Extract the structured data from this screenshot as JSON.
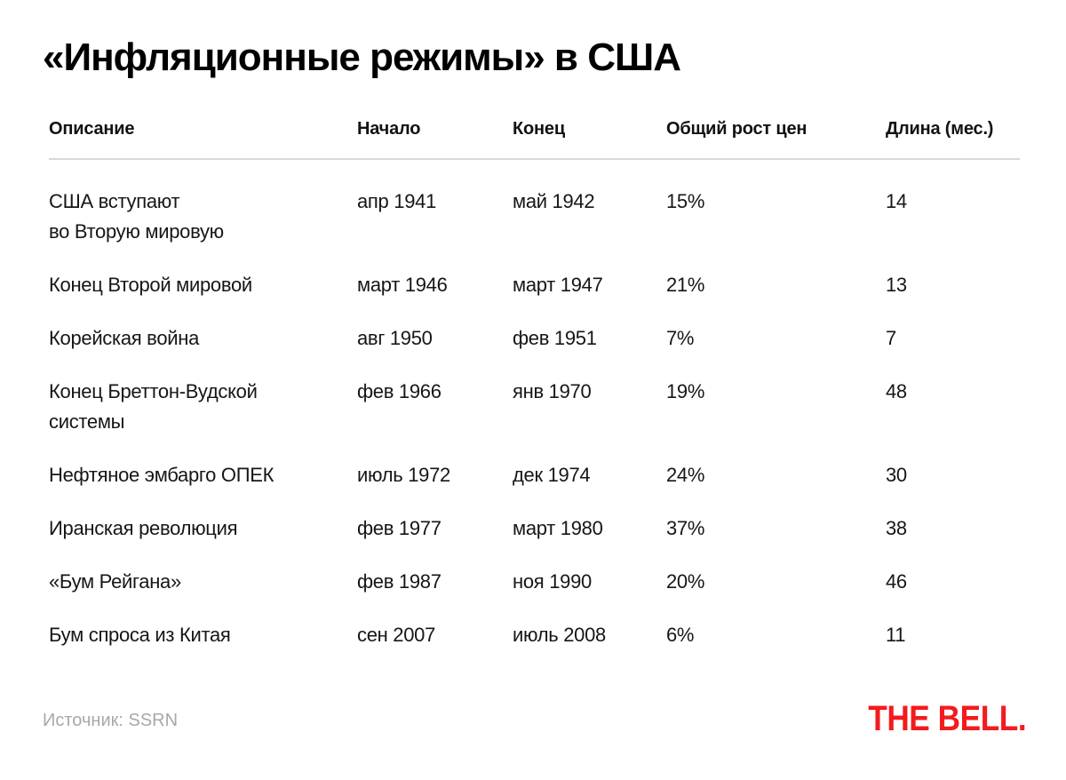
{
  "page": {
    "title": "«Инфляционные режимы» в США",
    "source_note": "Источник: SSRN",
    "logo_text": "THE BELL.",
    "colors": {
      "background": "#FFFFFF",
      "text": "#161616",
      "title": "#000000",
      "muted_gray": "#A8A8A8",
      "rule_gray": "#D8D8D8",
      "brand_red": "#F31B1E"
    }
  },
  "table": {
    "columns": [
      "Описание",
      "Начало",
      "Конец",
      "Общий рост цен",
      "Длина (мес.)"
    ],
    "rows": [
      {
        "description": "США вступают\nво Вторую мировую",
        "start": "апр 1941",
        "end": "май 1942",
        "growth": "15%",
        "length": "14"
      },
      {
        "description": "Конец Второй мировой",
        "start": "март 1946",
        "end": "март 1947",
        "growth": "21%",
        "length": "13"
      },
      {
        "description": "Корейская война",
        "start": "авг 1950",
        "end": "фев 1951",
        "growth": "7%",
        "length": "7"
      },
      {
        "description": "Конец Бреттон-Вудской\nсистемы",
        "start": "фев 1966",
        "end": "янв 1970",
        "growth": "19%",
        "length": "48"
      },
      {
        "description": "Нефтяное эмбарго ОПЕК",
        "start": "июль 1972",
        "end": "дек 1974",
        "growth": "24%",
        "length": "30"
      },
      {
        "description": "Иранская революция",
        "start": "фев 1977",
        "end": "март 1980",
        "growth": "37%",
        "length": "38"
      },
      {
        "description": "«Бум Рейгана»",
        "start": "фев 1987",
        "end": "ноя 1990",
        "growth": "20%",
        "length": "46"
      },
      {
        "description": "Бум спроса из Китая",
        "start": "сен 2007",
        "end": "июль 2008",
        "growth": "6%",
        "length": "11"
      }
    ]
  },
  "chart_data": {
    "type": "table",
    "title": "«Инфляционные режимы» в США",
    "columns": [
      "Описание",
      "Начало",
      "Конец",
      "Общий рост цен",
      "Длина (мес.)"
    ],
    "rows": [
      [
        "США вступают во Вторую мировую",
        "апр 1941",
        "май 1942",
        "15%",
        "14"
      ],
      [
        "Конец Второй мировой",
        "март 1946",
        "март 1947",
        "21%",
        "13"
      ],
      [
        "Корейская война",
        "авг 1950",
        "фев 1951",
        "7%",
        "7"
      ],
      [
        "Конец Бреттон-Вудской системы",
        "фев 1966",
        "янв 1970",
        "19%",
        "48"
      ],
      [
        "Нефтяное эмбарго ОПЕК",
        "июль 1972",
        "дек 1974",
        "24%",
        "30"
      ],
      [
        "Иранская революция",
        "фев 1977",
        "март 1980",
        "37%",
        "38"
      ],
      [
        "«Бум Рейгана»",
        "фев 1987",
        "ноя 1990",
        "20%",
        "46"
      ],
      [
        "Бум спроса из Китая",
        "сен 2007",
        "июль 2008",
        "6%",
        "11"
      ]
    ],
    "source": "SSRN"
  }
}
